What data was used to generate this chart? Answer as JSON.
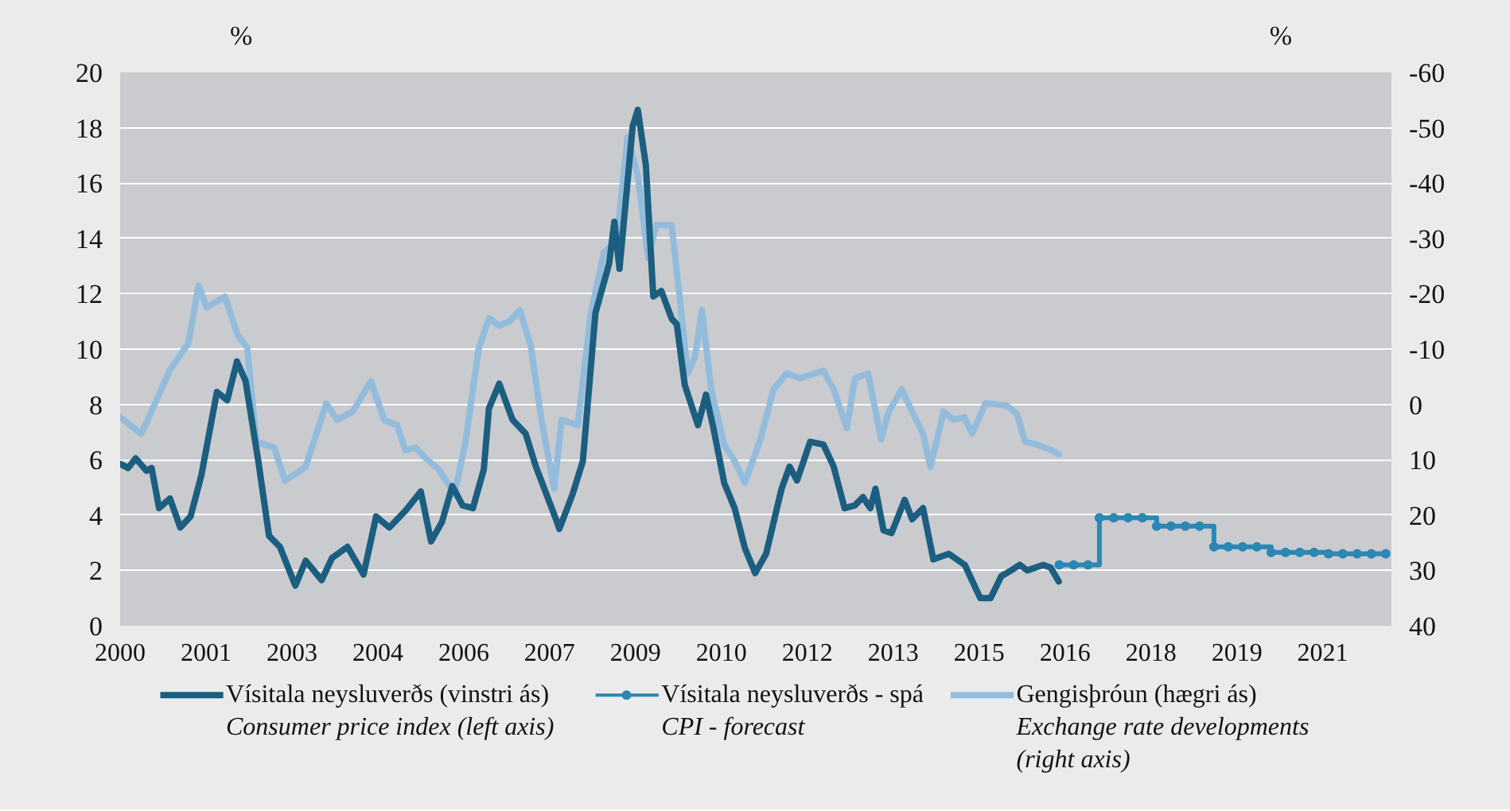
{
  "chart_data": {
    "type": "line",
    "ylabel": "%",
    "y2label": "%",
    "xlim": [
      2000,
      2022.2
    ],
    "xticks": [
      2000,
      {
        "value": 2001.5,
        "label": "2001"
      },
      {
        "value": 2003,
        "label": "2003"
      },
      {
        "value": 2004.5,
        "label": "2004"
      },
      {
        "value": 2006,
        "label": "2006"
      },
      {
        "value": 2007.5,
        "label": "2007"
      },
      {
        "value": 2009,
        "label": "2009"
      },
      {
        "value": 2010.5,
        "label": "2010"
      },
      {
        "value": 2012,
        "label": "2012"
      },
      {
        "value": 2013.5,
        "label": "2013"
      },
      {
        "value": 2015,
        "label": "2015"
      },
      {
        "value": 2016.5,
        "label": "2016"
      },
      {
        "value": 2018,
        "label": "2018"
      },
      {
        "value": 2019.5,
        "label": "2019"
      },
      {
        "value": 2021,
        "label": "2021"
      }
    ],
    "ylim": [
      0,
      20
    ],
    "yticks": [
      0,
      2,
      4,
      6,
      8,
      10,
      12,
      14,
      16,
      18,
      20
    ],
    "y2lim": [
      40,
      -60
    ],
    "y2ticks": [
      40,
      30,
      20,
      10,
      0,
      -10,
      -20,
      -30,
      -40,
      -50,
      -60
    ],
    "grid": "y",
    "legend": "bottom",
    "series": [
      {
        "name": "Vísitala neysluverðs (vinstri ás)\nConsumer price index (left axis)",
        "color": "#1b5e80",
        "x": [
          2000.0,
          2000.14,
          2000.27,
          2000.46,
          2000.55,
          2000.68,
          2000.87,
          2001.05,
          2001.23,
          2001.42,
          2001.69,
          2001.87,
          2002.04,
          2002.19,
          2002.42,
          2002.6,
          2002.79,
          2003.06,
          2003.24,
          2003.52,
          2003.7,
          2003.97,
          2004.25,
          2004.47,
          2004.7,
          2004.98,
          2005.25,
          2005.43,
          2005.62,
          2005.8,
          2005.98,
          2006.16,
          2006.35,
          2006.44,
          2006.62,
          2006.85,
          2007.08,
          2007.26,
          2007.62,
          2007.67,
          2007.9,
          2008.08,
          2008.3,
          2008.54,
          2008.63,
          2008.72,
          2008.95,
          2009.04,
          2009.18,
          2009.31,
          2009.45,
          2009.63,
          2009.72,
          2009.86,
          2010.09,
          2010.23,
          2010.36,
          2010.55,
          2010.73,
          2010.91,
          2011.09,
          2011.28,
          2011.55,
          2011.69,
          2011.82,
          2012.05,
          2012.28,
          2012.46,
          2012.65,
          2012.83,
          2012.97,
          2013.1,
          2013.19,
          2013.33,
          2013.47,
          2013.7,
          2013.83,
          2014.02,
          2014.2,
          2014.47,
          2014.75,
          2015.02,
          2015.2,
          2015.39,
          2015.48,
          2015.71,
          2015.84,
          2016.12,
          2016.25,
          2016.39
        ],
        "values": [
          5.85,
          5.7,
          6.05,
          5.6,
          5.7,
          4.25,
          4.6,
          3.55,
          3.95,
          5.45,
          8.45,
          8.15,
          9.55,
          8.85,
          5.85,
          3.25,
          2.85,
          1.45,
          2.35,
          1.65,
          2.45,
          2.85,
          1.85,
          3.95,
          3.55,
          4.15,
          4.85,
          3.05,
          3.75,
          5.05,
          4.35,
          4.25,
          5.65,
          7.85,
          8.75,
          7.45,
          6.95,
          5.75,
          3.8,
          3.5,
          4.75,
          5.95,
          11.3,
          13.1,
          14.6,
          12.9,
          18.05,
          18.65,
          16.65,
          11.9,
          12.1,
          11.1,
          10.9,
          8.7,
          7.25,
          8.35,
          7.15,
          5.15,
          4.25,
          2.8,
          1.9,
          2.6,
          4.95,
          5.75,
          5.25,
          6.65,
          6.55,
          5.75,
          4.25,
          4.35,
          4.65,
          4.25,
          4.95,
          3.45,
          3.35,
          4.55,
          3.85,
          4.25,
          2.4,
          2.6,
          2.2,
          1.0,
          1.0,
          1.8,
          1.9,
          2.2,
          2.0,
          2.2,
          2.1,
          1.6
        ]
      },
      {
        "name": "Vísitala neysluverðs - spá\nCPI - forecast",
        "type": "step",
        "marker": "circle",
        "color": "#2b87b3",
        "x": [
          2016.4,
          2016.65,
          2016.9,
          2017.1,
          2017.35,
          2017.6,
          2017.85,
          2018.1,
          2018.35,
          2018.6,
          2018.85,
          2019.1,
          2019.35,
          2019.6,
          2019.85,
          2020.1,
          2020.35,
          2020.6,
          2020.85,
          2021.1,
          2021.35,
          2021.6,
          2021.85,
          2022.1
        ],
        "values": [
          2.2,
          2.2,
          2.2,
          3.9,
          3.9,
          3.9,
          3.9,
          3.6,
          3.6,
          3.6,
          3.6,
          2.85,
          2.85,
          2.85,
          2.85,
          2.65,
          2.65,
          2.65,
          2.65,
          2.6,
          2.6,
          2.6,
          2.6,
          2.6
        ]
      },
      {
        "name": "Gengisþróun (hægri ás)\nExchange rate developments\n(right axis)",
        "axis": "y2",
        "color": "#93bcdc",
        "x": [
          2000.0,
          2000.37,
          2000.59,
          2000.87,
          2001.19,
          2001.37,
          2001.51,
          2001.83,
          2002.05,
          2002.22,
          2002.38,
          2002.69,
          2002.88,
          2003.24,
          2003.6,
          2003.79,
          2004.06,
          2004.38,
          2004.61,
          2004.84,
          2004.98,
          2005.16,
          2005.34,
          2005.57,
          2005.84,
          2006.03,
          2006.26,
          2006.44,
          2006.62,
          2006.8,
          2006.98,
          2007.17,
          2007.35,
          2007.58,
          2007.71,
          2007.99,
          2008.22,
          2008.45,
          2008.67,
          2008.86,
          2009.04,
          2009.22,
          2009.36,
          2009.63,
          2009.77,
          2009.91,
          2010.04,
          2010.16,
          2010.32,
          2010.55,
          2010.73,
          2010.91,
          2011.18,
          2011.41,
          2011.64,
          2011.87,
          2012.28,
          2012.46,
          2012.69,
          2012.83,
          2013.06,
          2013.29,
          2013.42,
          2013.65,
          2013.83,
          2014.02,
          2014.15,
          2014.38,
          2014.56,
          2014.74,
          2014.88,
          2015.11,
          2015.3,
          2015.48,
          2015.66,
          2015.8,
          2015.98,
          2016.12,
          2016.25,
          2016.39
        ],
        "values": [
          2.3,
          5.3,
          0.3,
          -6.2,
          -11,
          -21.5,
          -17.5,
          -19.5,
          -12.6,
          -10.2,
          6.8,
          7.8,
          13.8,
          11.3,
          -0.2,
          2.8,
          1.3,
          -4.2,
          2.8,
          3.8,
          8.3,
          7.8,
          9.8,
          11.8,
          16.3,
          6.8,
          -10,
          -15.6,
          -14.2,
          -15,
          -17,
          -10.6,
          2.3,
          15.2,
          2.8,
          3.8,
          -16.5,
          -27.5,
          -29.5,
          -48.3,
          -41.4,
          -26.5,
          -32.4,
          -32.4,
          -19.5,
          -5.6,
          -8.6,
          -17,
          -2.7,
          7.3,
          10.2,
          14.2,
          6.3,
          -2.7,
          -5.6,
          -4.7,
          -6.1,
          -2.7,
          4.3,
          -4.7,
          -5.6,
          6.3,
          1.3,
          -2.7,
          1.3,
          5.3,
          11.3,
          1.3,
          2.8,
          2.3,
          5.3,
          -0.2,
          0,
          0.2,
          1.7,
          6.7,
          7.2,
          7.7,
          8.2,
          9
        ]
      }
    ]
  }
}
